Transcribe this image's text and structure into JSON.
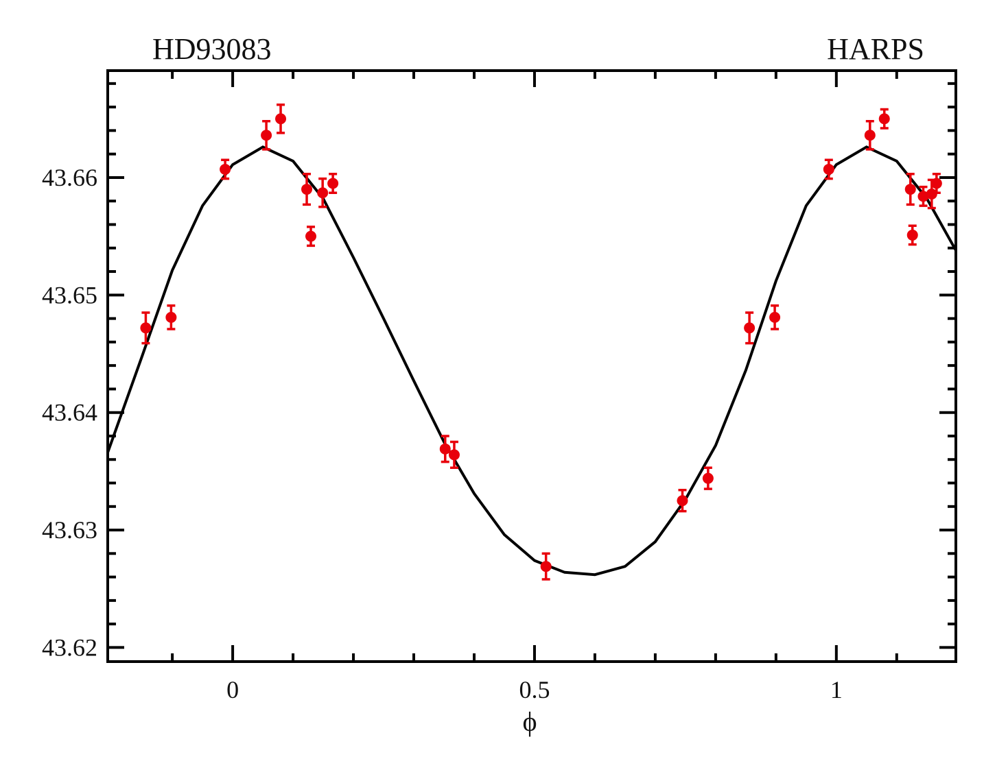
{
  "chart_data": {
    "type": "scatter",
    "title": "HD93083",
    "annotation": "HARPS",
    "xlabel": "ϕ",
    "xlim": [
      -0.207,
      1.198
    ],
    "ylim": [
      43.6188,
      43.6691
    ],
    "xticks": [
      0,
      0.5,
      1
    ],
    "xminorticks": [
      -0.1,
      0.1,
      0.2,
      0.3,
      0.4,
      0.6,
      0.7,
      0.8,
      0.9,
      1.1
    ],
    "yticks": [
      43.62,
      43.63,
      43.64,
      43.65,
      43.66
    ],
    "yminorticks": [
      43.622,
      43.624,
      43.626,
      43.628,
      43.632,
      43.634,
      43.636,
      43.638,
      43.642,
      43.644,
      43.646,
      43.648,
      43.652,
      43.654,
      43.656,
      43.658,
      43.662,
      43.664,
      43.666,
      43.668
    ],
    "points": {
      "color": "#e8000b",
      "x": [
        -0.144,
        -0.102,
        -0.0125,
        0.0557,
        0.0795,
        0.1227,
        0.1295,
        0.149,
        0.166,
        0.352,
        0.367,
        0.519,
        0.745,
        0.7875,
        0.856,
        0.898,
        0.9875,
        1.0557,
        1.0795,
        1.1227,
        1.1261,
        1.144,
        1.158,
        1.166
      ],
      "y": [
        43.6472,
        43.6481,
        43.6607,
        43.6636,
        43.665,
        43.659,
        43.655,
        43.6587,
        43.6595,
        43.6369,
        43.6364,
        43.6269,
        43.6325,
        43.6344,
        43.6472,
        43.6481,
        43.6607,
        43.6636,
        43.665,
        43.659,
        43.6551,
        43.6584,
        43.6586,
        43.6595
      ],
      "yerr": [
        0.0013,
        0.001,
        0.0008,
        0.0012,
        0.0012,
        0.0013,
        0.0008,
        0.0012,
        0.0008,
        0.0011,
        0.0011,
        0.0011,
        0.0009,
        0.0009,
        0.0013,
        0.001,
        0.0008,
        0.0012,
        0.0008,
        0.0013,
        0.0008,
        0.0008,
        0.0012,
        0.0008
      ]
    },
    "model": {
      "color": "#000000",
      "x": [
        -0.207,
        -0.15,
        -0.1,
        -0.05,
        0,
        0.05,
        0.1,
        0.15,
        0.2,
        0.25,
        0.3,
        0.35,
        0.4,
        0.45,
        0.5,
        0.55,
        0.6,
        0.65,
        0.7,
        0.75,
        0.8,
        0.85,
        0.9,
        0.95,
        1.0,
        1.05,
        1.1,
        1.15,
        1.198
      ],
      "y": [
        43.6366,
        43.6448,
        43.6521,
        43.6576,
        43.6611,
        43.6626,
        43.6614,
        43.6582,
        43.6532,
        43.648,
        43.6427,
        43.6375,
        43.6331,
        43.6296,
        43.6274,
        43.6264,
        43.6262,
        43.6269,
        43.629,
        43.6326,
        43.6372,
        43.6436,
        43.6512,
        43.6576,
        43.6611,
        43.6626,
        43.6614,
        43.6582,
        43.6538
      ]
    }
  }
}
